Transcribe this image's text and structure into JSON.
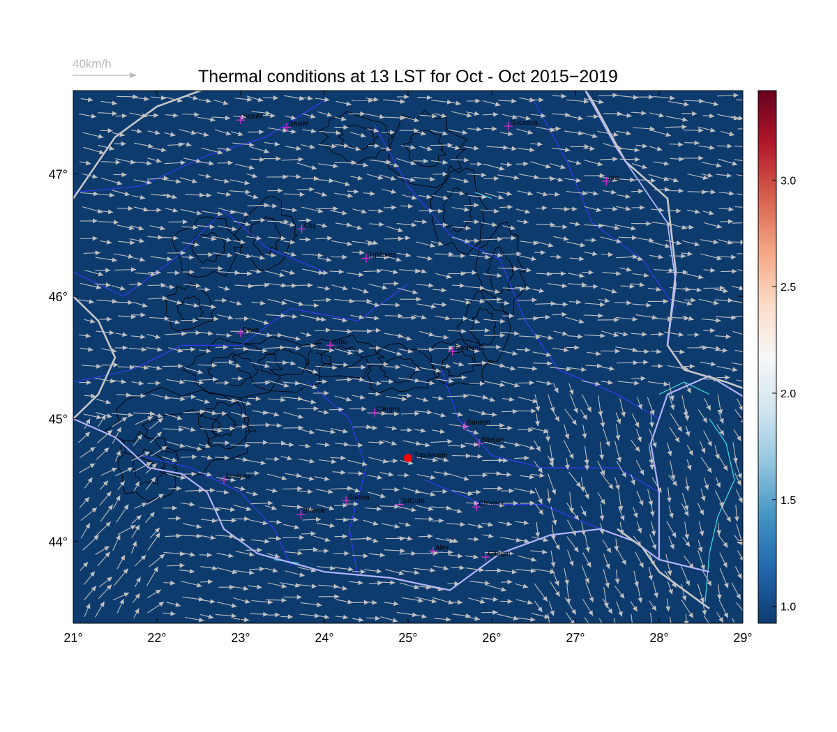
{
  "title": "Thermal conditions at 13 LST for Oct - Oct  2015−2019",
  "wind_reference": {
    "label": "40km/h",
    "color": "#b8b8b8"
  },
  "map": {
    "lon_range": [
      21,
      29
    ],
    "lat_range": [
      43.33,
      47.68
    ],
    "background_color": "#0d3b6e",
    "x_tick_labels": [
      "21°",
      "22°",
      "23°",
      "24°",
      "25°",
      "26°",
      "27°",
      "28°",
      "29°"
    ],
    "x_tick_values": [
      21,
      22,
      23,
      24,
      25,
      26,
      27,
      28,
      29
    ],
    "y_tick_labels": [
      "44°",
      "45°",
      "46°",
      "47°"
    ],
    "y_tick_values": [
      44,
      45,
      46,
      47
    ]
  },
  "colorbar": {
    "range": [
      0.92,
      3.42
    ],
    "tick_values": [
      1.0,
      1.5,
      2.0,
      2.5,
      3.0
    ],
    "tick_labels": [
      "1.0",
      "1.5",
      "2.0",
      "2.5",
      "3.0"
    ],
    "colors": [
      "#0d3b6e",
      "#2166ac",
      "#4393c3",
      "#92c5de",
      "#d1e5f0",
      "#f7f7f7",
      "#fddbc7",
      "#f4a582",
      "#d6604d",
      "#b2182b",
      "#67001f"
    ]
  },
  "cities": [
    {
      "name": "SatuM",
      "lon": 23.0,
      "lat": 47.44
    },
    {
      "name": "BaiaM",
      "lon": 23.55,
      "lat": 47.38
    },
    {
      "name": "Suceava",
      "lon": 26.2,
      "lat": 47.39
    },
    {
      "name": "Iasi",
      "lon": 27.37,
      "lat": 46.94
    },
    {
      "name": "Cluj",
      "lon": 23.73,
      "lat": 46.55
    },
    {
      "name": "TgMures",
      "lon": 24.5,
      "lat": 46.31
    },
    {
      "name": "Deva",
      "lon": 23.0,
      "lat": 45.7
    },
    {
      "name": "Sibiu",
      "lon": 24.07,
      "lat": 45.6
    },
    {
      "name": "Sanpetru",
      "lon": 25.53,
      "lat": 45.55
    },
    {
      "name": "CArges",
      "lon": 24.6,
      "lat": 45.05
    },
    {
      "name": "Banesti",
      "lon": 25.68,
      "lat": 44.94
    },
    {
      "name": "Strejnic",
      "lon": 25.85,
      "lat": 44.8
    },
    {
      "name": "Drobeta",
      "lon": 22.8,
      "lat": 44.5
    },
    {
      "name": "Slatina",
      "lon": 24.26,
      "lat": 44.33
    },
    {
      "name": "SilGum",
      "lon": 24.9,
      "lat": 44.3
    },
    {
      "name": "Ciinceni",
      "lon": 25.82,
      "lat": 44.28
    },
    {
      "name": "BVerde",
      "lon": 23.72,
      "lat": 44.22
    },
    {
      "name": "Alex",
      "lon": 25.3,
      "lat": 43.92
    },
    {
      "name": "Giurgiu",
      "lon": 25.93,
      "lat": 43.87
    }
  ],
  "highlight_site": {
    "name": "Topoloveni",
    "lon": 25.0,
    "lat": 44.68,
    "color": "#ff0000"
  },
  "colors": {
    "border_country": "#c8c8c8",
    "border_county": "#3a3aff",
    "danube": "#b4b4ff",
    "lakes": "#40e0e0",
    "contours": "#000000",
    "wind_arrows": "#c0c0c0",
    "city_marker": "#cc33cc"
  }
}
